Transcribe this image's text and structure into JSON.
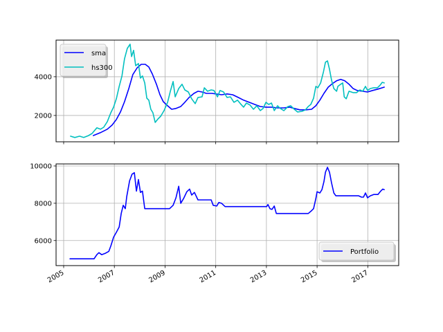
{
  "chart_data": [
    {
      "type": "line",
      "title": "",
      "xlabel": "",
      "ylabel": "",
      "xlim": [
        2004.7,
        2018.22
      ],
      "ylim": [
        640,
        5890
      ],
      "grid": true,
      "legend_position": "upper left",
      "x_ticks": [
        2005,
        2007,
        2009,
        2011,
        2013,
        2015,
        2017
      ],
      "y_ticks": [
        2000,
        4000
      ],
      "y_tick_labels": [
        "2000",
        "4000"
      ],
      "series": [
        {
          "name": "sma",
          "color": "#0000ff",
          "x": [
            2006.17,
            2006.45,
            2006.72,
            2006.91,
            2007.08,
            2007.24,
            2007.4,
            2007.57,
            2007.73,
            2007.9,
            2008.06,
            2008.22,
            2008.36,
            2008.5,
            2008.66,
            2008.8,
            2008.93,
            2009.1,
            2009.26,
            2009.43,
            2009.62,
            2009.78,
            2009.95,
            2010.14,
            2010.3,
            2010.46,
            2010.63,
            2010.85,
            2011.01,
            2011.23,
            2011.45,
            2011.67,
            2011.89,
            2012.1,
            2012.32,
            2012.54,
            2012.76,
            2012.98,
            2013.2,
            2013.42,
            2013.69,
            2013.91,
            2014.1,
            2014.32,
            2014.56,
            2014.78,
            2014.95,
            2015.11,
            2015.27,
            2015.44,
            2015.6,
            2015.77,
            2015.93,
            2016.09,
            2016.26,
            2016.42,
            2016.58,
            2016.8,
            2016.99,
            2017.19,
            2017.4,
            2017.65
          ],
          "values": [
            960,
            1110,
            1290,
            1500,
            1790,
            2180,
            2710,
            3390,
            4110,
            4460,
            4640,
            4640,
            4500,
            4140,
            3610,
            3070,
            2710,
            2500,
            2320,
            2360,
            2460,
            2680,
            2930,
            3140,
            3250,
            3210,
            3140,
            3140,
            3110,
            3070,
            3110,
            3070,
            2930,
            2790,
            2680,
            2570,
            2460,
            2430,
            2430,
            2390,
            2390,
            2430,
            2360,
            2290,
            2290,
            2320,
            2500,
            2790,
            3140,
            3460,
            3640,
            3790,
            3860,
            3790,
            3610,
            3390,
            3290,
            3250,
            3210,
            3290,
            3360,
            3460
          ]
        },
        {
          "name": "hs300",
          "color": "#00bfbf",
          "x": [
            2005.27,
            2005.44,
            2005.63,
            2005.79,
            2005.98,
            2006.12,
            2006.31,
            2006.45,
            2006.58,
            2006.72,
            2006.86,
            2006.97,
            2007.08,
            2007.19,
            2007.3,
            2007.4,
            2007.51,
            2007.62,
            2007.68,
            2007.76,
            2007.84,
            2007.95,
            2008.03,
            2008.11,
            2008.2,
            2008.28,
            2008.36,
            2008.44,
            2008.52,
            2008.61,
            2008.72,
            2008.83,
            2008.96,
            2009.1,
            2009.21,
            2009.32,
            2009.4,
            2009.54,
            2009.67,
            2009.78,
            2009.92,
            2010.05,
            2010.19,
            2010.3,
            2010.46,
            2010.55,
            2010.68,
            2010.82,
            2010.93,
            2011.07,
            2011.17,
            2011.31,
            2011.45,
            2011.58,
            2011.72,
            2011.86,
            2011.97,
            2012.1,
            2012.21,
            2012.35,
            2012.49,
            2012.62,
            2012.76,
            2012.87,
            2012.98,
            2013.09,
            2013.2,
            2013.31,
            2013.44,
            2013.55,
            2013.69,
            2013.85,
            2013.96,
            2014.1,
            2014.23,
            2014.4,
            2014.54,
            2014.65,
            2014.75,
            2014.86,
            2014.95,
            2015.03,
            2015.14,
            2015.25,
            2015.33,
            2015.41,
            2015.49,
            2015.57,
            2015.66,
            2015.77,
            2015.82,
            2015.93,
            2016.01,
            2016.07,
            2016.15,
            2016.26,
            2016.42,
            2016.56,
            2016.69,
            2016.8,
            2016.91,
            2016.99,
            2017.1,
            2017.23,
            2017.38,
            2017.49,
            2017.57,
            2017.65
          ],
          "values": [
            930,
            860,
            930,
            860,
            960,
            1070,
            1360,
            1290,
            1390,
            1680,
            2140,
            2430,
            2860,
            3500,
            4040,
            4930,
            5460,
            5680,
            5040,
            5360,
            4570,
            4680,
            3930,
            4040,
            3680,
            2890,
            2790,
            2320,
            2140,
            1640,
            1820,
            1960,
            2250,
            2680,
            3250,
            3750,
            2960,
            3390,
            3610,
            3320,
            3210,
            2860,
            2610,
            2930,
            2960,
            3430,
            3250,
            3320,
            3290,
            2960,
            3290,
            3210,
            2930,
            2960,
            2680,
            2790,
            2610,
            2430,
            2640,
            2540,
            2320,
            2500,
            2250,
            2360,
            2680,
            2570,
            2640,
            2250,
            2500,
            2360,
            2250,
            2460,
            2500,
            2320,
            2180,
            2210,
            2290,
            2460,
            2570,
            2890,
            3500,
            3430,
            3680,
            4250,
            4750,
            4820,
            4390,
            3820,
            3390,
            3250,
            3500,
            3610,
            3680,
            2960,
            2860,
            3250,
            3180,
            3180,
            3320,
            3250,
            3500,
            3290,
            3390,
            3430,
            3430,
            3570,
            3710,
            3680
          ]
        }
      ]
    },
    {
      "type": "line",
      "title": "",
      "xlabel": "",
      "ylabel": "",
      "xlim": [
        2004.7,
        2018.22
      ],
      "ylim": [
        4655,
        10110
      ],
      "grid": true,
      "legend_position": "lower right",
      "x_ticks": [
        2005,
        2007,
        2009,
        2011,
        2013,
        2015,
        2017
      ],
      "x_tick_labels": [
        "2005",
        "2007",
        "2009",
        "2011",
        "2013",
        "2015",
        "2017"
      ],
      "y_ticks": [
        6000,
        8000,
        10000
      ],
      "y_tick_labels": [
        "6000",
        "8000",
        "10000"
      ],
      "series": [
        {
          "name": "Portfolio",
          "color": "#0000ff",
          "x": [
            2005.25,
            2006.2,
            2006.31,
            2006.39,
            2006.5,
            2006.64,
            2006.78,
            2006.86,
            2006.97,
            2007.08,
            2007.19,
            2007.27,
            2007.35,
            2007.43,
            2007.49,
            2007.6,
            2007.7,
            2007.79,
            2007.87,
            2007.95,
            2008.03,
            2008.11,
            2008.2,
            2008.36,
            2009.18,
            2009.32,
            2009.43,
            2009.54,
            2009.62,
            2009.73,
            2009.86,
            2009.97,
            2010.05,
            2010.16,
            2010.3,
            2010.46,
            2010.82,
            2010.9,
            2011.04,
            2011.12,
            2011.23,
            2011.37,
            2011.83,
            2013.01,
            2013.06,
            2013.14,
            2013.22,
            2013.31,
            2013.39,
            2014.65,
            2014.78,
            2014.86,
            2014.95,
            2015.0,
            2015.11,
            2015.19,
            2015.27,
            2015.33,
            2015.41,
            2015.49,
            2015.57,
            2015.66,
            2015.74,
            2015.87,
            2016.64,
            2016.75,
            2016.83,
            2016.91,
            2016.99,
            2017.1,
            2017.23,
            2017.4,
            2017.51,
            2017.59,
            2017.65
          ],
          "values": [
            5020,
            5020,
            5240,
            5350,
            5240,
            5310,
            5420,
            5710,
            6180,
            6440,
            6730,
            7450,
            7890,
            7710,
            8360,
            9200,
            9560,
            9640,
            8650,
            9270,
            8580,
            8650,
            7710,
            7710,
            7710,
            7890,
            8290,
            8910,
            8000,
            8250,
            8620,
            8760,
            8440,
            8580,
            8180,
            8180,
            8180,
            7890,
            7850,
            8040,
            8000,
            7820,
            7820,
            7820,
            7930,
            7710,
            7670,
            7850,
            7450,
            7450,
            7600,
            7710,
            8250,
            8620,
            8550,
            8730,
            9160,
            9670,
            9930,
            9670,
            9090,
            8550,
            8400,
            8400,
            8400,
            8330,
            8330,
            8550,
            8290,
            8400,
            8470,
            8470,
            8650,
            8760,
            8730
          ]
        }
      ]
    }
  ],
  "top_chart": {
    "y_tick_labels": [
      "2000",
      "4000"
    ],
    "legend": {
      "items": [
        "sma",
        "hs300"
      ]
    }
  },
  "bottom_chart": {
    "y_tick_labels": [
      "6000",
      "8000",
      "10000"
    ],
    "x_tick_labels": [
      "2005",
      "2007",
      "2009",
      "2011",
      "2013",
      "2015",
      "2017"
    ],
    "legend": {
      "items": [
        "Portfolio"
      ]
    }
  },
  "colors": {
    "sma": "#0000ff",
    "hs300": "#00bfbf",
    "portfolio": "#0000ff",
    "grid": "#b0b0b0",
    "axes": "#000000"
  }
}
